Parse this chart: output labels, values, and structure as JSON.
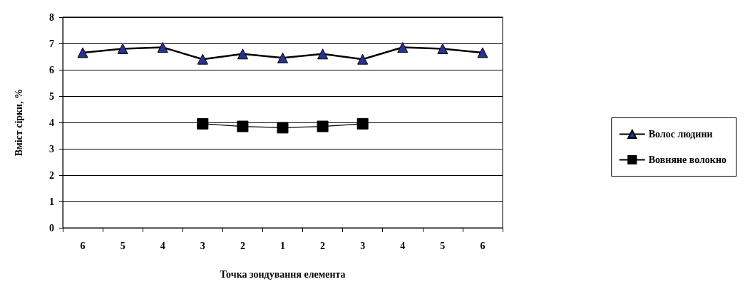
{
  "chart_data": {
    "type": "line",
    "xlabel": "Точка зондування елемента",
    "ylabel": "Вміст сірки, %",
    "categories": [
      "6",
      "5",
      "4",
      "3",
      "2",
      "1",
      "2",
      "3",
      "4",
      "5",
      "6"
    ],
    "series": [
      {
        "name": "Волос людини",
        "color": "#26348f",
        "marker": "triangle",
        "values": [
          6.65,
          6.8,
          6.85,
          6.4,
          6.6,
          6.45,
          6.6,
          6.4,
          6.85,
          6.8,
          6.65
        ]
      },
      {
        "name": "Вовняне волокно",
        "color": "#000000",
        "marker": "square",
        "values": [
          null,
          null,
          null,
          3.95,
          3.85,
          3.8,
          3.85,
          3.95,
          null,
          null,
          null
        ]
      }
    ],
    "ylim": [
      0,
      8
    ],
    "yticks": [
      0,
      1,
      2,
      3,
      4,
      5,
      6,
      7,
      8
    ],
    "grid": "y",
    "legend": "right"
  }
}
